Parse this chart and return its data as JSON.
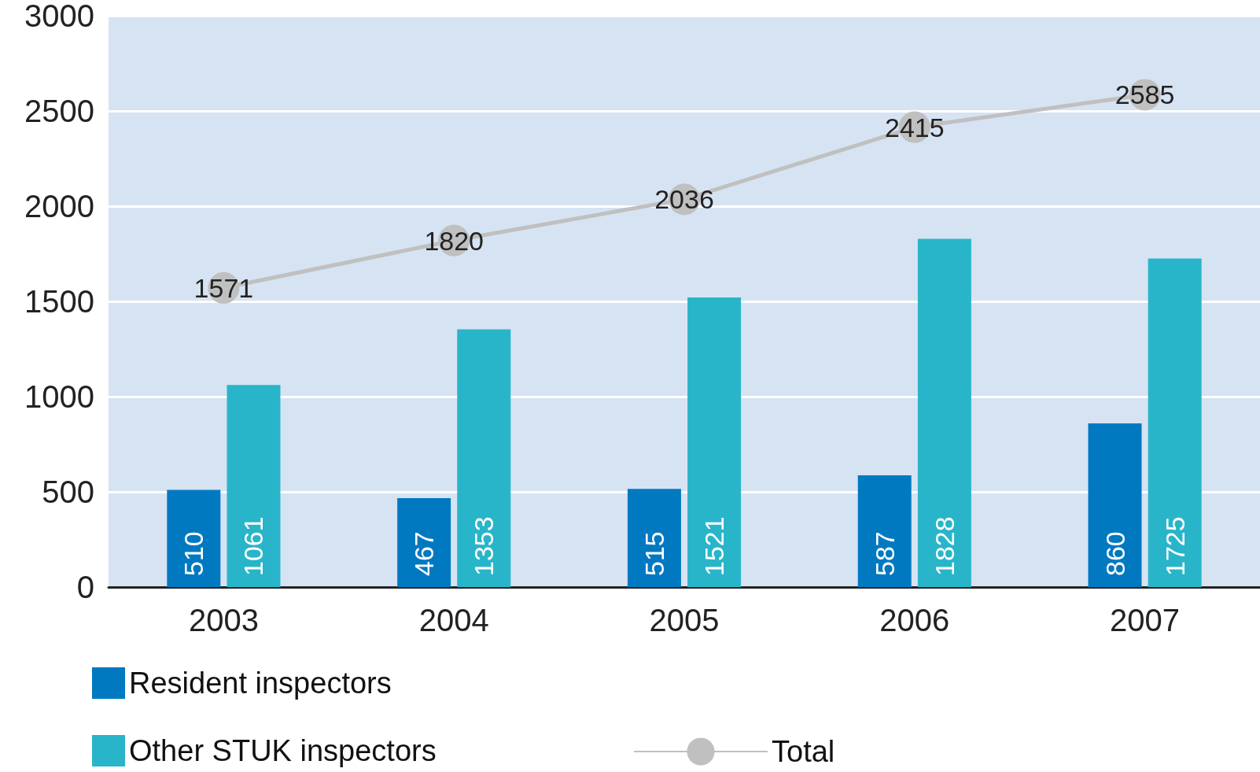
{
  "chart_data": {
    "type": "bar",
    "categories": [
      "2003",
      "2004",
      "2005",
      "2006",
      "2007"
    ],
    "series": [
      {
        "name": "Resident inspectors",
        "color": "#0079c1",
        "values": [
          510,
          467,
          515,
          587,
          860
        ]
      },
      {
        "name": "Other STUK inspectors",
        "color": "#29b5c9",
        "values": [
          1061,
          1353,
          1521,
          1828,
          1725
        ]
      },
      {
        "name": "Total",
        "type": "line",
        "color": "#c0c0c0",
        "values": [
          1571,
          1820,
          2036,
          2415,
          2585
        ]
      }
    ],
    "marker": "circle",
    "ylim": [
      0,
      3000
    ],
    "yticks": [
      0,
      500,
      1000,
      1500,
      2000,
      2500,
      3000
    ],
    "grid": "y",
    "legend": "bottom",
    "data_labels": true
  }
}
